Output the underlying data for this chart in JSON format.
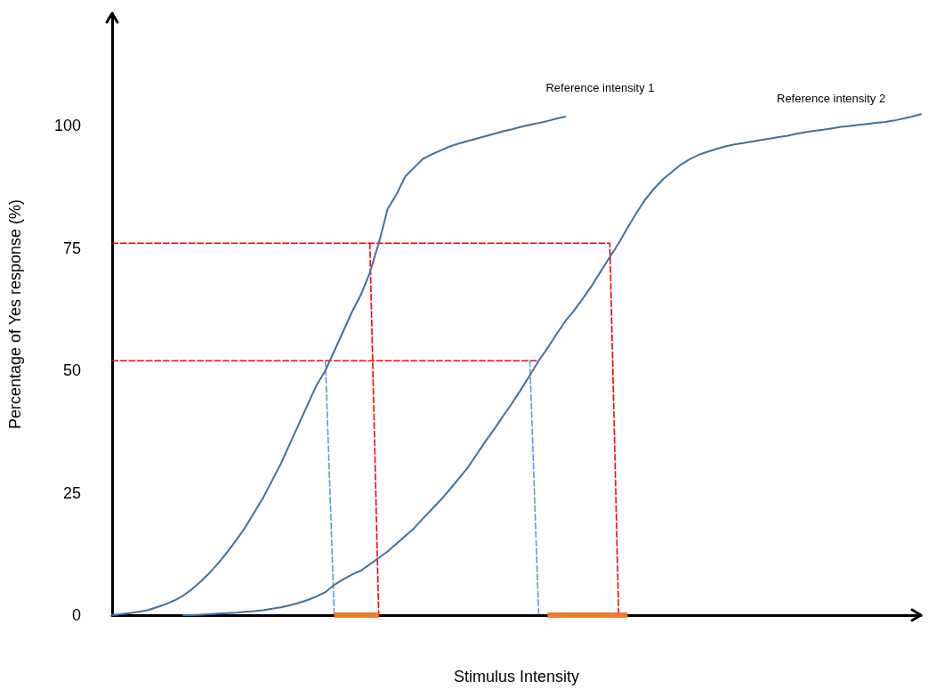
{
  "chart_data": {
    "type": "line",
    "xlabel": "Stimulus Intensity",
    "ylabel": "Percentage of Yes response (%)",
    "categories": [
      null,
      null,
      null,
      null,
      null,
      null,
      null,
      null,
      null,
      null,
      null,
      null,
      null,
      null,
      null,
      null,
      null,
      null,
      null,
      null,
      null,
      null,
      null,
      null,
      null,
      null,
      null,
      null,
      null,
      null,
      null,
      null,
      null,
      null,
      null,
      null,
      null,
      null,
      null,
      null,
      null,
      null,
      null,
      null,
      null,
      null,
      null,
      null,
      null,
      null,
      null,
      null,
      null,
      null,
      null,
      null,
      null,
      null,
      null,
      null,
      null,
      null,
      null,
      null,
      null,
      null,
      null,
      null,
      null,
      null,
      null,
      null,
      null,
      null,
      null,
      null,
      null,
      null,
      null,
      null,
      null,
      null,
      null,
      null,
      null,
      null,
      null,
      null,
      null,
      null,
      null,
      null
    ],
    "ylim": [
      0,
      123
    ],
    "yticks": [
      0,
      25,
      50,
      75,
      100
    ],
    "grid": false,
    "legend": false,
    "tick_labels": "y",
    "marker": "none",
    "series": [
      {
        "name": "Reference intensity 1",
        "color": "#41719c",
        "line_style": "solid",
        "values": [
          0,
          0.2,
          0.4,
          0.7,
          1.0,
          1.6,
          2.2,
          3.0,
          4.0,
          5.3,
          6.9,
          8.7,
          10.7,
          13,
          15.4,
          18,
          21,
          24,
          27.5,
          31,
          35,
          39,
          43,
          47,
          50,
          54,
          58,
          62,
          65.5,
          70,
          76,
          83,
          86,
          89.7,
          91.5,
          93.3,
          94.2,
          95.0,
          95.8,
          96.4,
          96.9,
          97.4,
          97.9,
          98.4,
          98.9,
          99.3,
          99.8,
          100.2,
          100.6,
          101.0,
          101.5,
          101.9,
          null,
          null,
          null,
          null,
          null,
          null,
          null,
          null,
          null,
          null,
          null,
          null,
          null,
          null,
          null,
          null,
          null,
          null,
          null,
          null,
          null,
          null,
          null,
          null,
          null,
          null,
          null,
          null,
          null,
          null,
          null,
          null,
          null,
          null,
          null,
          null,
          null,
          null,
          null,
          null
        ]
      },
      {
        "name": "Reference intensity 2",
        "color": "#41719c",
        "line_style": "solid",
        "values": [
          null,
          null,
          null,
          null,
          null,
          null,
          null,
          null,
          0,
          0,
          0.1,
          0.2,
          0.3,
          0.4,
          0.5,
          0.7,
          0.8,
          1.0,
          1.3,
          1.6,
          2.0,
          2.5,
          3.1,
          3.8,
          4.7,
          6.2,
          7.3,
          8.3,
          9.1,
          10.4,
          11.7,
          13.0,
          14.6,
          16.2,
          17.8,
          19.8,
          21.7,
          23.6,
          25.7,
          27.9,
          30.1,
          32.8,
          35.5,
          38.0,
          40.7,
          43.3,
          46.1,
          49.0,
          52,
          54.6,
          57.4,
          60.1,
          62.3,
          64.8,
          67.4,
          70.3,
          73.2,
          76,
          79.2,
          82.2,
          85,
          87.2,
          89.1,
          90.6,
          92.1,
          93.2,
          94.1,
          94.7,
          95.3,
          95.8,
          96.2,
          96.5,
          96.8,
          97.1,
          97.4,
          97.7,
          98.0,
          98.4,
          98.7,
          99.0,
          99.2,
          99.5,
          99.8,
          100,
          100.2,
          100.4,
          100.6,
          100.8,
          101.1,
          101.5,
          101.9,
          102.4
        ]
      },
      {
        "color": "#ff0000",
        "line_style": "dashed",
        "values": [
          76,
          76,
          76,
          76,
          76,
          76,
          76,
          76,
          76,
          76,
          76,
          76,
          76,
          76,
          76,
          76,
          76,
          76,
          76,
          76,
          76,
          76,
          76,
          76,
          76,
          76,
          76,
          76,
          76,
          76,
          76,
          76,
          76,
          76,
          76,
          76,
          76,
          76,
          76,
          76,
          76,
          76,
          76,
          76,
          76,
          76,
          76,
          76,
          76,
          76,
          76,
          76,
          76,
          76,
          76,
          76,
          76,
          0,
          null,
          null,
          null,
          null,
          null,
          null,
          null,
          null,
          null,
          null,
          null,
          null,
          null,
          null,
          null,
          null,
          null,
          null,
          null,
          null,
          null,
          null,
          null,
          null,
          null,
          null,
          null,
          null,
          null,
          null,
          null,
          null,
          null,
          null
        ]
      },
      {
        "color": "#ff0000",
        "line_style": "dashed",
        "values": [
          null,
          null,
          null,
          null,
          null,
          null,
          null,
          null,
          null,
          null,
          null,
          null,
          null,
          null,
          null,
          null,
          null,
          null,
          null,
          null,
          null,
          null,
          null,
          null,
          null,
          null,
          null,
          null,
          null,
          76,
          0,
          null,
          null,
          null,
          null,
          null,
          null,
          null,
          null,
          null,
          null,
          null,
          null,
          null,
          null,
          null,
          null,
          null,
          null,
          null,
          null,
          null,
          null,
          null,
          null,
          null,
          null,
          null,
          null,
          null,
          null,
          null,
          null,
          null,
          null,
          null,
          null,
          null,
          null,
          null,
          null,
          null,
          null,
          null,
          null,
          null,
          null,
          null,
          null,
          null,
          null,
          null,
          null,
          null,
          null,
          null,
          null,
          null,
          null,
          null,
          null,
          null
        ]
      },
      {
        "color": "#ff0000",
        "line_style": "dashed",
        "values": [
          52,
          52,
          52,
          52,
          52,
          52,
          52,
          52,
          52,
          52,
          52,
          52,
          52,
          52,
          52,
          52,
          52,
          52,
          52,
          52,
          52,
          52,
          52,
          52,
          52,
          52,
          52,
          52,
          52,
          52,
          52,
          52,
          52,
          52,
          52,
          52,
          52,
          52,
          52,
          52,
          52,
          52,
          52,
          52,
          52,
          52,
          52,
          52,
          52,
          null,
          null,
          null,
          null,
          null,
          null,
          null,
          null,
          null,
          null,
          null,
          null,
          null,
          null,
          null,
          null,
          null,
          null,
          null,
          null,
          null,
          null,
          null,
          null,
          null,
          null,
          null,
          null,
          null,
          null,
          null,
          null,
          null,
          null,
          null,
          null,
          null,
          null,
          null,
          null,
          null,
          null,
          null
        ]
      },
      {
        "color": "#5b9bd5",
        "line_style": "dashed",
        "values": [
          null,
          null,
          null,
          null,
          null,
          null,
          null,
          null,
          null,
          null,
          null,
          null,
          null,
          null,
          null,
          null,
          null,
          null,
          null,
          null,
          null,
          null,
          null,
          null,
          52,
          0,
          null,
          null,
          null,
          null,
          null,
          null,
          null,
          null,
          null,
          null,
          null,
          null,
          null,
          null,
          null,
          null,
          null,
          null,
          null,
          null,
          null,
          null,
          null,
          null,
          null,
          null,
          null,
          null,
          null,
          null,
          null,
          null,
          null,
          null,
          null,
          null,
          null,
          null,
          null,
          null,
          null,
          null,
          null,
          null,
          null,
          null,
          null,
          null,
          null,
          null,
          null,
          null,
          null,
          null,
          null,
          null,
          null,
          null,
          null,
          null,
          null,
          null,
          null,
          null,
          null,
          null
        ]
      },
      {
        "color": "#5b9bd5",
        "line_style": "dashed",
        "values": [
          null,
          null,
          null,
          null,
          null,
          null,
          null,
          null,
          null,
          null,
          null,
          null,
          null,
          null,
          null,
          null,
          null,
          null,
          null,
          null,
          null,
          null,
          null,
          null,
          null,
          null,
          null,
          null,
          null,
          null,
          null,
          null,
          null,
          null,
          null,
          null,
          null,
          null,
          null,
          null,
          null,
          null,
          null,
          null,
          null,
          null,
          null,
          52,
          0,
          null,
          null,
          null,
          null,
          null,
          null,
          null,
          null,
          null,
          null,
          null,
          null,
          null,
          null,
          null,
          null,
          null,
          null,
          null,
          null,
          null,
          null,
          null,
          null,
          null,
          null,
          null,
          null,
          null,
          null,
          null,
          null,
          null,
          null,
          null,
          null,
          null,
          null,
          null,
          null,
          null,
          null,
          null
        ]
      },
      {
        "color": "#ed7d31",
        "line_style": "solid",
        "values": [
          null,
          null,
          null,
          null,
          null,
          null,
          null,
          null,
          null,
          null,
          null,
          null,
          null,
          null,
          null,
          null,
          null,
          null,
          null,
          null,
          null,
          null,
          null,
          null,
          null,
          0,
          0,
          0,
          0,
          0,
          0,
          null,
          null,
          null,
          null,
          null,
          null,
          null,
          null,
          null,
          null,
          null,
          null,
          null,
          null,
          null,
          null,
          null,
          null,
          null,
          null,
          null,
          null,
          null,
          null,
          null,
          null,
          null,
          null,
          null,
          null,
          null,
          null,
          null,
          null,
          null,
          null,
          null,
          null,
          null,
          null,
          null,
          null,
          null,
          null,
          null,
          null,
          null,
          null,
          null,
          null,
          null,
          null,
          null,
          null,
          null,
          null,
          null,
          null,
          null,
          null,
          null
        ]
      },
      {
        "color": "#ed7d31",
        "line_style": "solid",
        "values": [
          null,
          null,
          null,
          null,
          null,
          null,
          null,
          null,
          null,
          null,
          null,
          null,
          null,
          null,
          null,
          null,
          null,
          null,
          null,
          null,
          null,
          null,
          null,
          null,
          null,
          null,
          null,
          null,
          null,
          null,
          null,
          null,
          null,
          null,
          null,
          null,
          null,
          null,
          null,
          null,
          null,
          null,
          null,
          null,
          null,
          null,
          null,
          null,
          null,
          0,
          0,
          0,
          0,
          0,
          0,
          0,
          0,
          0,
          0,
          null,
          null,
          null,
          null,
          null,
          null,
          null,
          null,
          null,
          null,
          null,
          null,
          null,
          null,
          null,
          null,
          null,
          null,
          null,
          null,
          null,
          null,
          null,
          null,
          null,
          null,
          null,
          null,
          null,
          null,
          null,
          null,
          null
        ]
      }
    ]
  }
}
